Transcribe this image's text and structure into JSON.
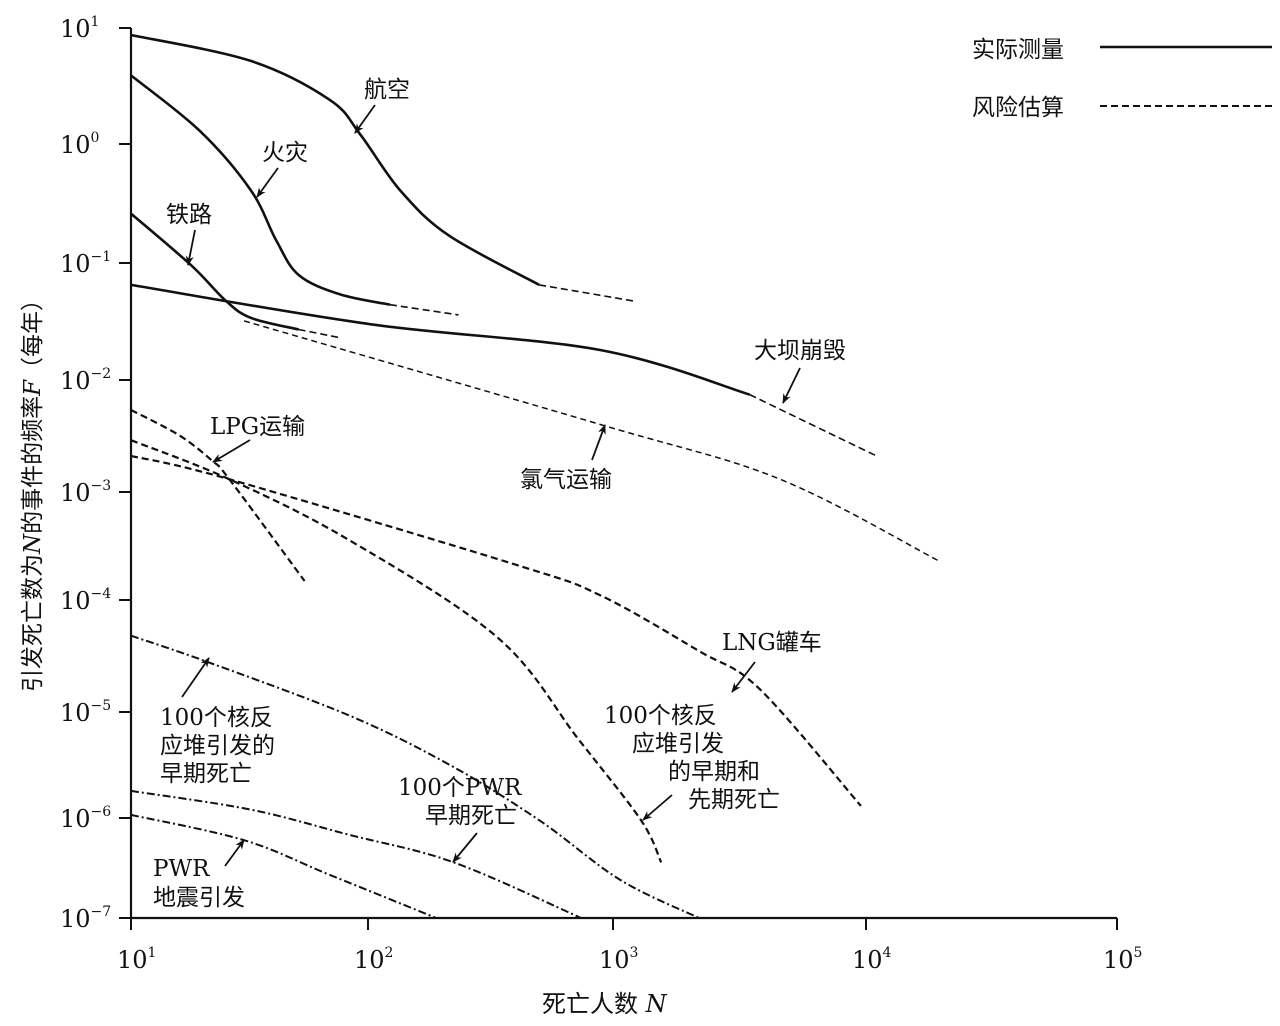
{
  "chart_data": {
    "type": "line",
    "title": "",
    "xlabel": "死亡人数 N",
    "xlabel_text": "死亡人数 ",
    "xlabel_var": "N",
    "ylabel_parts": [
      "引发死亡数为",
      "N",
      "的事件的频率",
      "F",
      "（每年）"
    ],
    "ylabel": "引发死亡数为N的事件的频率F（每年）",
    "xscale": "log",
    "yscale": "log",
    "xlim": [
      10,
      100000
    ],
    "ylim": [
      1e-07,
      10
    ],
    "x_ticks": {
      "base": "10",
      "exponents": [
        "1",
        "2",
        "3",
        "4",
        "5"
      ]
    },
    "y_ticks": {
      "base": "10",
      "exponents": [
        "1",
        "0",
        "−1",
        "−2",
        "−3",
        "−4",
        "−5",
        "−6",
        "−7"
      ]
    },
    "grid": false,
    "legend": {
      "position": "top-right",
      "entries": [
        {
          "label": "实际测量",
          "style": "solid"
        },
        {
          "label": "风险估算",
          "style": "dashed"
        }
      ]
    },
    "series": [
      {
        "name": "航空",
        "label_lines": [
          "航空"
        ],
        "style": "solid",
        "points": [
          [
            10,
            8.7
          ],
          [
            32,
            5.2
          ],
          [
            69,
            2.4
          ],
          [
            93,
            1.2
          ],
          [
            135,
            0.41
          ],
          [
            214,
            0.17
          ],
          [
            500,
            0.065
          ]
        ],
        "estimate": [
          [
            500,
            0.065
          ],
          [
            1230,
            0.047
          ]
        ]
      },
      {
        "name": "火灾",
        "label_lines": [
          "火灾"
        ],
        "style": "solid",
        "points": [
          [
            10,
            3.9
          ],
          [
            19.5,
            1.3
          ],
          [
            32,
            0.41
          ],
          [
            41,
            0.155
          ],
          [
            51,
            0.079
          ],
          [
            76,
            0.054
          ],
          [
            123,
            0.044
          ]
        ],
        "estimate": [
          [
            123,
            0.044
          ],
          [
            234,
            0.036
          ]
        ]
      },
      {
        "name": "铁路",
        "label_lines": [
          "铁路"
        ],
        "style": "solid",
        "points": [
          [
            10,
            0.26
          ],
          [
            18,
            0.095
          ],
          [
            25,
            0.048
          ],
          [
            32,
            0.034
          ],
          [
            51,
            0.027
          ]
        ],
        "estimate": [
          [
            51,
            0.027
          ],
          [
            76,
            0.023
          ]
        ]
      },
      {
        "name": "大坝崩毁",
        "label_lines": [
          "大坝崩毁"
        ],
        "style": "solid",
        "points": [
          [
            10,
            0.065
          ],
          [
            102,
            0.03
          ],
          [
            891,
            0.018
          ],
          [
            3470,
            0.0074
          ]
        ],
        "estimate": [
          [
            3470,
            0.0074
          ],
          [
            11000,
            0.0021
          ]
        ]
      },
      {
        "name": "氯气运输",
        "label_lines": [
          "氯气运输"
        ],
        "style": "dashed-thin",
        "points": [
          [
            30,
            0.032
          ],
          [
            891,
            0.004
          ],
          [
            4570,
            0.0013
          ],
          [
            19500,
            0.00023
          ]
        ]
      },
      {
        "name": "LPG运输",
        "label_lines": [
          "LPG运输"
        ],
        "style": "dashed",
        "points": [
          [
            10,
            0.0054
          ],
          [
            16,
            0.0032
          ],
          [
            22,
            0.0019
          ],
          [
            26,
            0.0013
          ],
          [
            54,
            0.00015
          ]
        ]
      },
      {
        "name": "LNG罐车",
        "label_lines": [
          "LNG罐车"
        ],
        "style": "dashed",
        "points": [
          [
            10,
            0.0021
          ],
          [
            26,
            0.0013
          ],
          [
            407,
            0.00021
          ],
          [
            891,
            0.00011
          ],
          [
            2190,
            3.5e-05
          ],
          [
            3800,
            1.6e-05
          ],
          [
            9550,
            1.3e-06
          ]
        ]
      },
      {
        "name": "100个核反应堆引发的早期和先期死亡",
        "label_lines": [
          "100个核反",
          "应堆引发",
          "的早期和",
          "先期死亡"
        ],
        "style": "dashed",
        "points": [
          [
            10,
            0.0029
          ],
          [
            26,
            0.0013
          ],
          [
            83,
            0.00036
          ],
          [
            339,
            4.6e-05
          ],
          [
            724,
            5.5e-06
          ],
          [
            1290,
            9.5e-07
          ],
          [
            1550,
            3.6e-07
          ]
        ]
      },
      {
        "name": "100个核反应堆引发的早期死亡",
        "label_lines": [
          "100个核反",
          "应堆引发的",
          "早期死亡"
        ],
        "style": "dashdot",
        "points": [
          [
            10,
            4.8e-05
          ],
          [
            21,
            2.8e-05
          ],
          [
            83,
            9.3e-06
          ],
          [
            214,
            3.2e-06
          ],
          [
            500,
            9.5e-07
          ],
          [
            1070,
            2.4e-07
          ],
          [
            2190,
            1e-07
          ]
        ]
      },
      {
        "name": "100个PWR早期死亡",
        "label_lines": [
          "100个PWR",
          "早期死亡"
        ],
        "style": "dashdot",
        "points": [
          [
            10,
            1.8e-06
          ],
          [
            32,
            1.2e-06
          ],
          [
            83,
            6.8e-07
          ],
          [
            224,
            3.6e-07
          ],
          [
            741,
            1e-07
          ]
        ]
      },
      {
        "name": "PWR地震引发",
        "label_lines": [
          "PWR",
          "地震引发"
        ],
        "style": "dashdot",
        "points": [
          [
            10,
            1.07e-06
          ],
          [
            30,
            6e-07
          ],
          [
            69,
            2.7e-07
          ],
          [
            190,
            1e-07
          ]
        ]
      }
    ]
  }
}
